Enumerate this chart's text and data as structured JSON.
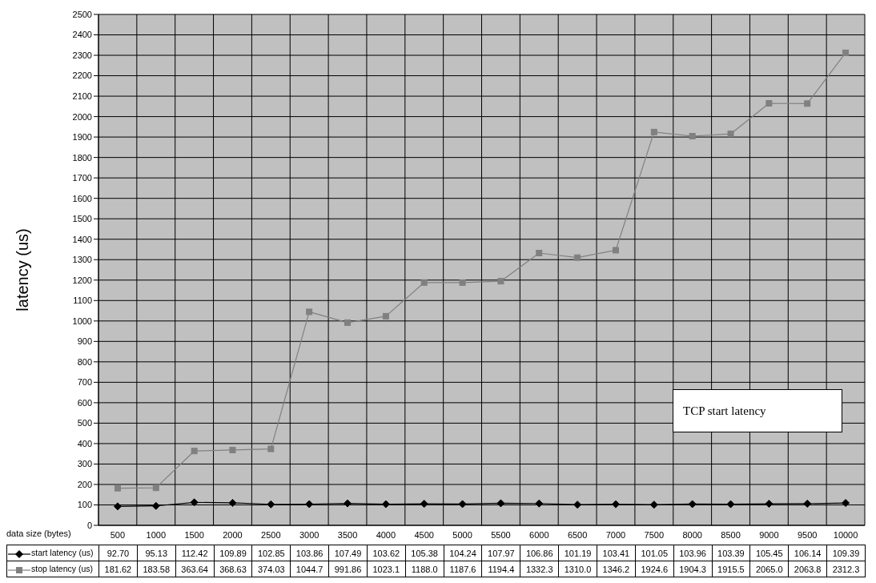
{
  "chart_data": {
    "type": "line",
    "ylabel": "latency (us)",
    "xlabel": "data size (bytes)",
    "categories": [
      "500",
      "1000",
      "1500",
      "2000",
      "2500",
      "3000",
      "3500",
      "4000",
      "4500",
      "5000",
      "5500",
      "6000",
      "6500",
      "7000",
      "7500",
      "8000",
      "8500",
      "9000",
      "9500",
      "10000"
    ],
    "series": [
      {
        "name": "start latency (us)",
        "color": "#000000",
        "marker": "diamond",
        "values": [
          92.7,
          95.13,
          112.42,
          109.89,
          102.85,
          103.86,
          107.49,
          103.62,
          105.38,
          104.24,
          107.97,
          106.86,
          101.19,
          103.41,
          101.05,
          103.96,
          103.39,
          105.45,
          106.14,
          109.39
        ],
        "value_labels": [
          "92.70",
          "95.13",
          "112.42",
          "109.89",
          "102.85",
          "103.86",
          "107.49",
          "103.62",
          "105.38",
          "104.24",
          "107.97",
          "106.86",
          "101.19",
          "103.41",
          "101.05",
          "103.96",
          "103.39",
          "105.45",
          "106.14",
          "109.39"
        ]
      },
      {
        "name": "stop latency (us)",
        "color": "#808080",
        "marker": "square",
        "values": [
          181.62,
          183.58,
          363.64,
          368.63,
          374.03,
          1044.7,
          991.86,
          1023.1,
          1188.0,
          1187.6,
          1194.4,
          1332.3,
          1310.0,
          1346.2,
          1924.6,
          1904.3,
          1915.5,
          2065.0,
          2063.8,
          2312.3
        ],
        "value_labels": [
          "181.62",
          "183.58",
          "363.64",
          "368.63",
          "374.03",
          "1044.7",
          "991.86",
          "1023.1",
          "1188.0",
          "1187.6",
          "1194.4",
          "1332.3",
          "1310.0",
          "1346.2",
          "1924.6",
          "1904.3",
          "1915.5",
          "2065.0",
          "2063.8",
          "2312.3"
        ]
      }
    ],
    "ylim": [
      0,
      2500
    ],
    "yticks": [
      0,
      100,
      200,
      300,
      400,
      500,
      600,
      700,
      800,
      900,
      1000,
      1100,
      1200,
      1300,
      1400,
      1500,
      1600,
      1700,
      1800,
      1900,
      2000,
      2100,
      2200,
      2300,
      2400,
      2500
    ],
    "grid": true,
    "legend": "bottom",
    "annotations": [
      "TCP start latency"
    ]
  }
}
